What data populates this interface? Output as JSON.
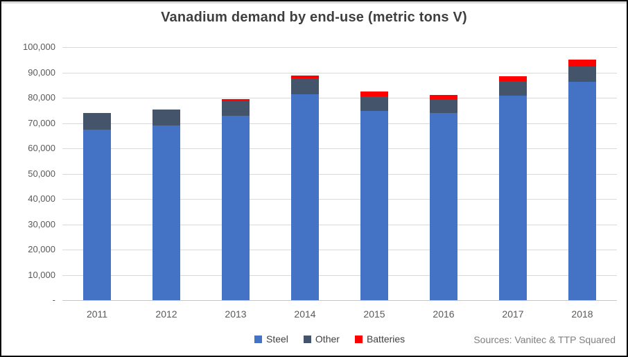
{
  "header": {
    "title": "Vanadium demand by end-use (metric tons V)"
  },
  "footer": {
    "source_note": "Sources: Vanitec & TTP Squared"
  },
  "chart_data": {
    "type": "bar",
    "stacked": true,
    "title": "Vanadium demand by end-use (metric tons V)",
    "categories": [
      "2011",
      "2012",
      "2013",
      "2014",
      "2015",
      "2016",
      "2017",
      "2018"
    ],
    "series": [
      {
        "name": "Steel",
        "color": "#4472C4",
        "values": [
          67500,
          69000,
          73000,
          81500,
          74800,
          74000,
          80800,
          86200
        ]
      },
      {
        "name": "Other",
        "color": "#44546A",
        "values": [
          6500,
          6300,
          5700,
          6300,
          5700,
          5500,
          5800,
          6200
        ]
      },
      {
        "name": "Batteries",
        "color": "#FF0000",
        "values": [
          0,
          0,
          800,
          1100,
          1900,
          1700,
          2000,
          2600
        ]
      }
    ],
    "xlabel": "",
    "ylabel": "",
    "ylim": [
      0,
      100000
    ],
    "ytick_step": 10000,
    "ytick_labels": [
      "-",
      "10,000",
      "20,000",
      "30,000",
      "40,000",
      "50,000",
      "60,000",
      "70,000",
      "80,000",
      "90,000",
      "100,000"
    ],
    "grid": true,
    "legend_position": "bottom"
  },
  "legend": {
    "items": [
      {
        "label": "Steel",
        "color": "#4472C4"
      },
      {
        "label": "Other",
        "color": "#44546A"
      },
      {
        "label": "Batteries",
        "color": "#FF0000"
      }
    ]
  },
  "style_colors": {
    "title_text": "#3f3f3f",
    "axis_text": "#595959",
    "gridline": "#d9d9d9",
    "source_text": "#7f7f7f",
    "frame_border": "#0a0a0a"
  }
}
